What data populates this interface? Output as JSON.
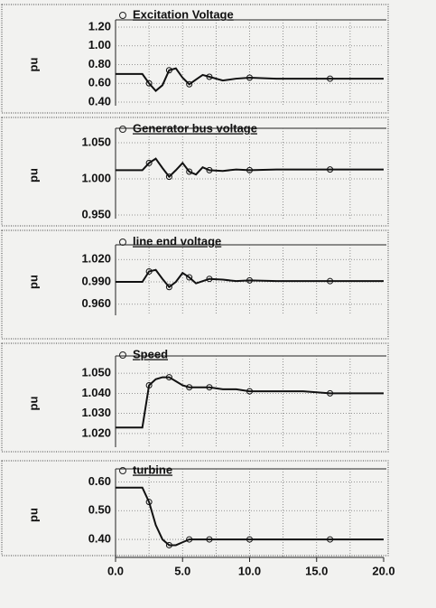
{
  "chart_data": [
    {
      "type": "line",
      "ylabel": "pu",
      "grid": true,
      "x": [
        0,
        1,
        2,
        2.5,
        3,
        3.5,
        4,
        4.5,
        5,
        5.5,
        6,
        6.5,
        7,
        8,
        9,
        10,
        12,
        14,
        16,
        18,
        20
      ],
      "xlim": [
        0,
        20
      ],
      "ylim": [
        0.4,
        1.2
      ],
      "yticks": [
        {
          "value": 0.4,
          "label": "0.40"
        },
        {
          "value": 0.6,
          "label": "0.60"
        },
        {
          "value": 0.8,
          "label": "0.80"
        },
        {
          "value": 1.0,
          "label": "1.00"
        },
        {
          "value": 1.2,
          "label": "1.20"
        }
      ],
      "series": [
        {
          "name": "Excitation Voltage",
          "color": "#111111",
          "values": [
            0.7,
            0.7,
            0.7,
            0.6,
            0.52,
            0.58,
            0.74,
            0.76,
            0.66,
            0.59,
            0.64,
            0.69,
            0.67,
            0.63,
            0.65,
            0.66,
            0.65,
            0.65,
            0.65,
            0.65,
            0.65
          ]
        }
      ]
    },
    {
      "type": "line",
      "ylabel": "pu",
      "grid": true,
      "x": [
        0,
        1,
        2,
        2.5,
        3,
        3.5,
        4,
        4.5,
        5,
        5.5,
        6,
        6.5,
        7,
        8,
        9,
        10,
        12,
        14,
        16,
        18,
        20
      ],
      "xlim": [
        0,
        20
      ],
      "ylim": [
        0.95,
        1.06
      ],
      "yticks": [
        {
          "value": 0.95,
          "label": "0.950"
        },
        {
          "value": 1.0,
          "label": "1.000"
        },
        {
          "value": 1.05,
          "label": "1.050"
        }
      ],
      "series": [
        {
          "name": "Generator bus voltage",
          "color": "#111111",
          "values": [
            1.012,
            1.012,
            1.012,
            1.022,
            1.028,
            1.015,
            1.003,
            1.012,
            1.022,
            1.01,
            1.006,
            1.016,
            1.012,
            1.011,
            1.013,
            1.012,
            1.013,
            1.013,
            1.013,
            1.013,
            1.013
          ]
        }
      ]
    },
    {
      "type": "line",
      "ylabel": "pu",
      "grid": true,
      "x": [
        0,
        1,
        2,
        2.5,
        3,
        3.5,
        4,
        4.5,
        5,
        5.5,
        6,
        6.5,
        7,
        8,
        9,
        10,
        12,
        14,
        16,
        18,
        20
      ],
      "xlim": [
        0,
        20
      ],
      "ylim": [
        0.95,
        1.03
      ],
      "yticks": [
        {
          "value": 0.96,
          "label": "0.960"
        },
        {
          "value": 0.99,
          "label": "0.990"
        },
        {
          "value": 1.02,
          "label": "1.020"
        }
      ],
      "series": [
        {
          "name": "line end voltage",
          "color": "#111111",
          "values": [
            0.99,
            0.99,
            0.99,
            1.004,
            1.006,
            0.994,
            0.983,
            0.99,
            1.002,
            0.996,
            0.988,
            0.991,
            0.994,
            0.993,
            0.991,
            0.992,
            0.991,
            0.991,
            0.991,
            0.991,
            0.991
          ]
        }
      ]
    },
    {
      "type": "line",
      "ylabel": "pu",
      "grid": true,
      "x": [
        0,
        1,
        2,
        2.5,
        3,
        3.5,
        4,
        4.5,
        5,
        5.5,
        6,
        6.5,
        7,
        8,
        9,
        10,
        12,
        14,
        16,
        18,
        20
      ],
      "xlim": [
        0,
        20
      ],
      "ylim": [
        1.015,
        1.055
      ],
      "yticks": [
        {
          "value": 1.02,
          "label": "1.020"
        },
        {
          "value": 1.03,
          "label": "1.030"
        },
        {
          "value": 1.04,
          "label": "1.040"
        },
        {
          "value": 1.05,
          "label": "1.050"
        }
      ],
      "series": [
        {
          "name": "Speed",
          "color": "#111111",
          "values": [
            1.023,
            1.023,
            1.023,
            1.044,
            1.047,
            1.048,
            1.048,
            1.046,
            1.044,
            1.043,
            1.043,
            1.043,
            1.043,
            1.042,
            1.042,
            1.041,
            1.041,
            1.041,
            1.04,
            1.04,
            1.04
          ]
        }
      ]
    },
    {
      "type": "line",
      "ylabel": "pu",
      "grid": true,
      "x": [
        0,
        1,
        2,
        2.5,
        3,
        3.5,
        4,
        4.5,
        5,
        5.5,
        6,
        6.5,
        7,
        8,
        9,
        10,
        12,
        14,
        16,
        18,
        20
      ],
      "xlim": [
        0,
        20
      ],
      "xticks": [
        {
          "value": 0,
          "label": "0.0"
        },
        {
          "value": 5,
          "label": "5.0"
        },
        {
          "value": 10,
          "label": "10.0"
        },
        {
          "value": 15,
          "label": "15.0"
        },
        {
          "value": 20,
          "label": "20.0"
        }
      ],
      "ylim": [
        0.35,
        0.62
      ],
      "yticks": [
        {
          "value": 0.4,
          "label": "0.40"
        },
        {
          "value": 0.5,
          "label": "0.50"
        },
        {
          "value": 0.6,
          "label": "0.60"
        }
      ],
      "series": [
        {
          "name": "turbine",
          "color": "#111111",
          "values": [
            0.58,
            0.58,
            0.58,
            0.53,
            0.45,
            0.4,
            0.38,
            0.38,
            0.39,
            0.4,
            0.4,
            0.4,
            0.4,
            0.4,
            0.4,
            0.4,
            0.4,
            0.4,
            0.4,
            0.4,
            0.4
          ]
        }
      ]
    }
  ]
}
